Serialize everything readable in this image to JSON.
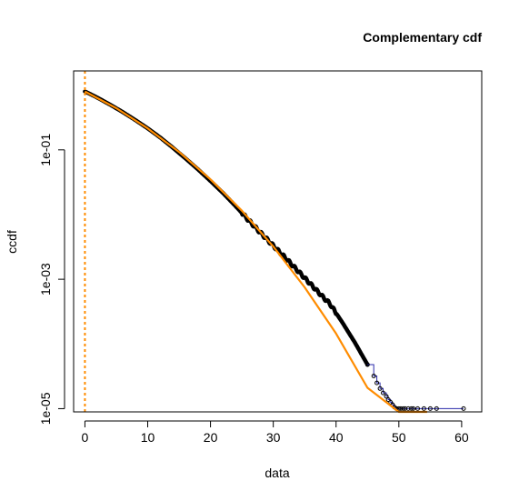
{
  "chart_data": {
    "type": "scatter",
    "title": "Complementary cdf",
    "xlabel": "data",
    "ylabel": "ccdf",
    "xlim": [
      -1.8,
      63.2
    ],
    "ylim_log10": [
      -5.05,
      0.22
    ],
    "y_scale": "log",
    "x_ticks": [
      0,
      10,
      20,
      30,
      40,
      50,
      60
    ],
    "x_tick_labels": [
      "0",
      "10",
      "20",
      "30",
      "40",
      "50",
      "60"
    ],
    "y_ticks": [
      0.1,
      0.001,
      1e-05
    ],
    "y_tick_labels": [
      "1e-01",
      "1e-03",
      "1e-05"
    ],
    "grid": false,
    "legend": "none",
    "series": [
      {
        "kind": "empirical ccdf points",
        "color": "#000000",
        "x": [
          0,
          2,
          4,
          6,
          8,
          10,
          12,
          14,
          16,
          18,
          20,
          22,
          24,
          26,
          28,
          30,
          32,
          34,
          36,
          38,
          39,
          40,
          41,
          42,
          43,
          44,
          45,
          46,
          46.5,
          47,
          47.5,
          48,
          48.3,
          48.7,
          49,
          49.3,
          49.6,
          50,
          50.3,
          50.7,
          51,
          51.5,
          52,
          52.3,
          53,
          54,
          55,
          56,
          60.3
        ],
        "y": [
          0.8,
          0.64,
          0.5,
          0.385,
          0.29,
          0.215,
          0.155,
          0.108,
          0.074,
          0.05,
          0.033,
          0.0215,
          0.0135,
          0.0083,
          0.0052,
          0.0033,
          0.0021,
          0.00132,
          0.00083,
          0.00052,
          0.00042,
          0.0003,
          0.000215,
          0.00015,
          0.000105,
          7.1e-05,
          4.8e-05,
          3.2e-05,
          2.5e-05,
          2.05e-05,
          1.75e-05,
          1.55e-05,
          1.38e-05,
          1.25e-05,
          1.15e-05,
          1.05e-05,
          9.7e-06,
          9e-06,
          8.2e-06,
          7.5e-06,
          6.8e-06,
          6e-06,
          5e-06,
          4e-06,
          3.2e-06,
          2.4e-06,
          1.8e-06,
          1.2e-06,
          2e-07
        ]
      },
      {
        "kind": "fitted ccdf curve",
        "color": "#FF8C00",
        "x": [
          0,
          5,
          10,
          15,
          20,
          25,
          30,
          35,
          40,
          45,
          50,
          53,
          54.5
        ],
        "y": [
          0.8,
          0.44,
          0.215,
          0.093,
          0.035,
          0.0115,
          0.0032,
          0.00075,
          0.000145,
          2.1e-05,
          1.8e-06,
          2.5e-07,
          7e-08
        ]
      },
      {
        "kind": "threshold line",
        "color": "#FF8C00",
        "x_value": 0
      }
    ]
  }
}
